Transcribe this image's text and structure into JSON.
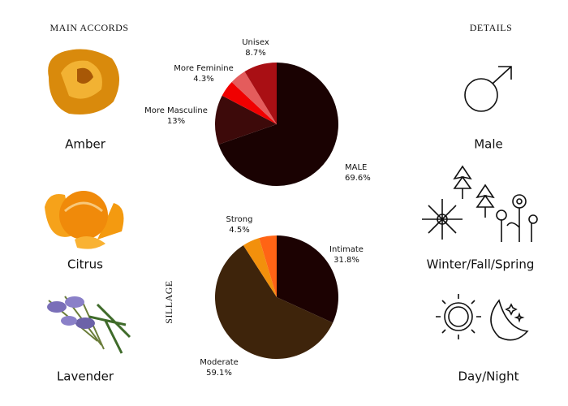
{
  "header": {
    "left": "MAIN ACCORDS",
    "right": "DETAILS"
  },
  "accords": [
    "Amber",
    "Citrus",
    "Lavender"
  ],
  "details": [
    "Male",
    "Winter/Fall/Spring",
    "Day/Night"
  ],
  "chart_data": [
    {
      "type": "pie",
      "categories": [
        "MALE",
        "More Masculine",
        "More Feminine",
        null,
        "Unisex"
      ],
      "values": [
        69.6,
        13,
        4.3,
        4.3,
        8.7
      ],
      "value_labels": [
        "69.6%",
        "13%",
        "4.3%",
        null,
        "8.7%"
      ],
      "colors": [
        "#1a0202",
        "#3d0a0a",
        "#f00000",
        "#e45c5c",
        "#a90f14"
      ]
    },
    {
      "type": "pie",
      "title": "SILLAGE",
      "categories": [
        "Intimate",
        "Moderate",
        "Strong",
        null
      ],
      "values": [
        31.8,
        59.1,
        4.5,
        4.6
      ],
      "value_labels": [
        "31.8%",
        "59.1%",
        "4.5%",
        null
      ],
      "colors": [
        "#1c0202",
        "#3e240b",
        "#f2900c",
        "#ff6415"
      ]
    }
  ]
}
